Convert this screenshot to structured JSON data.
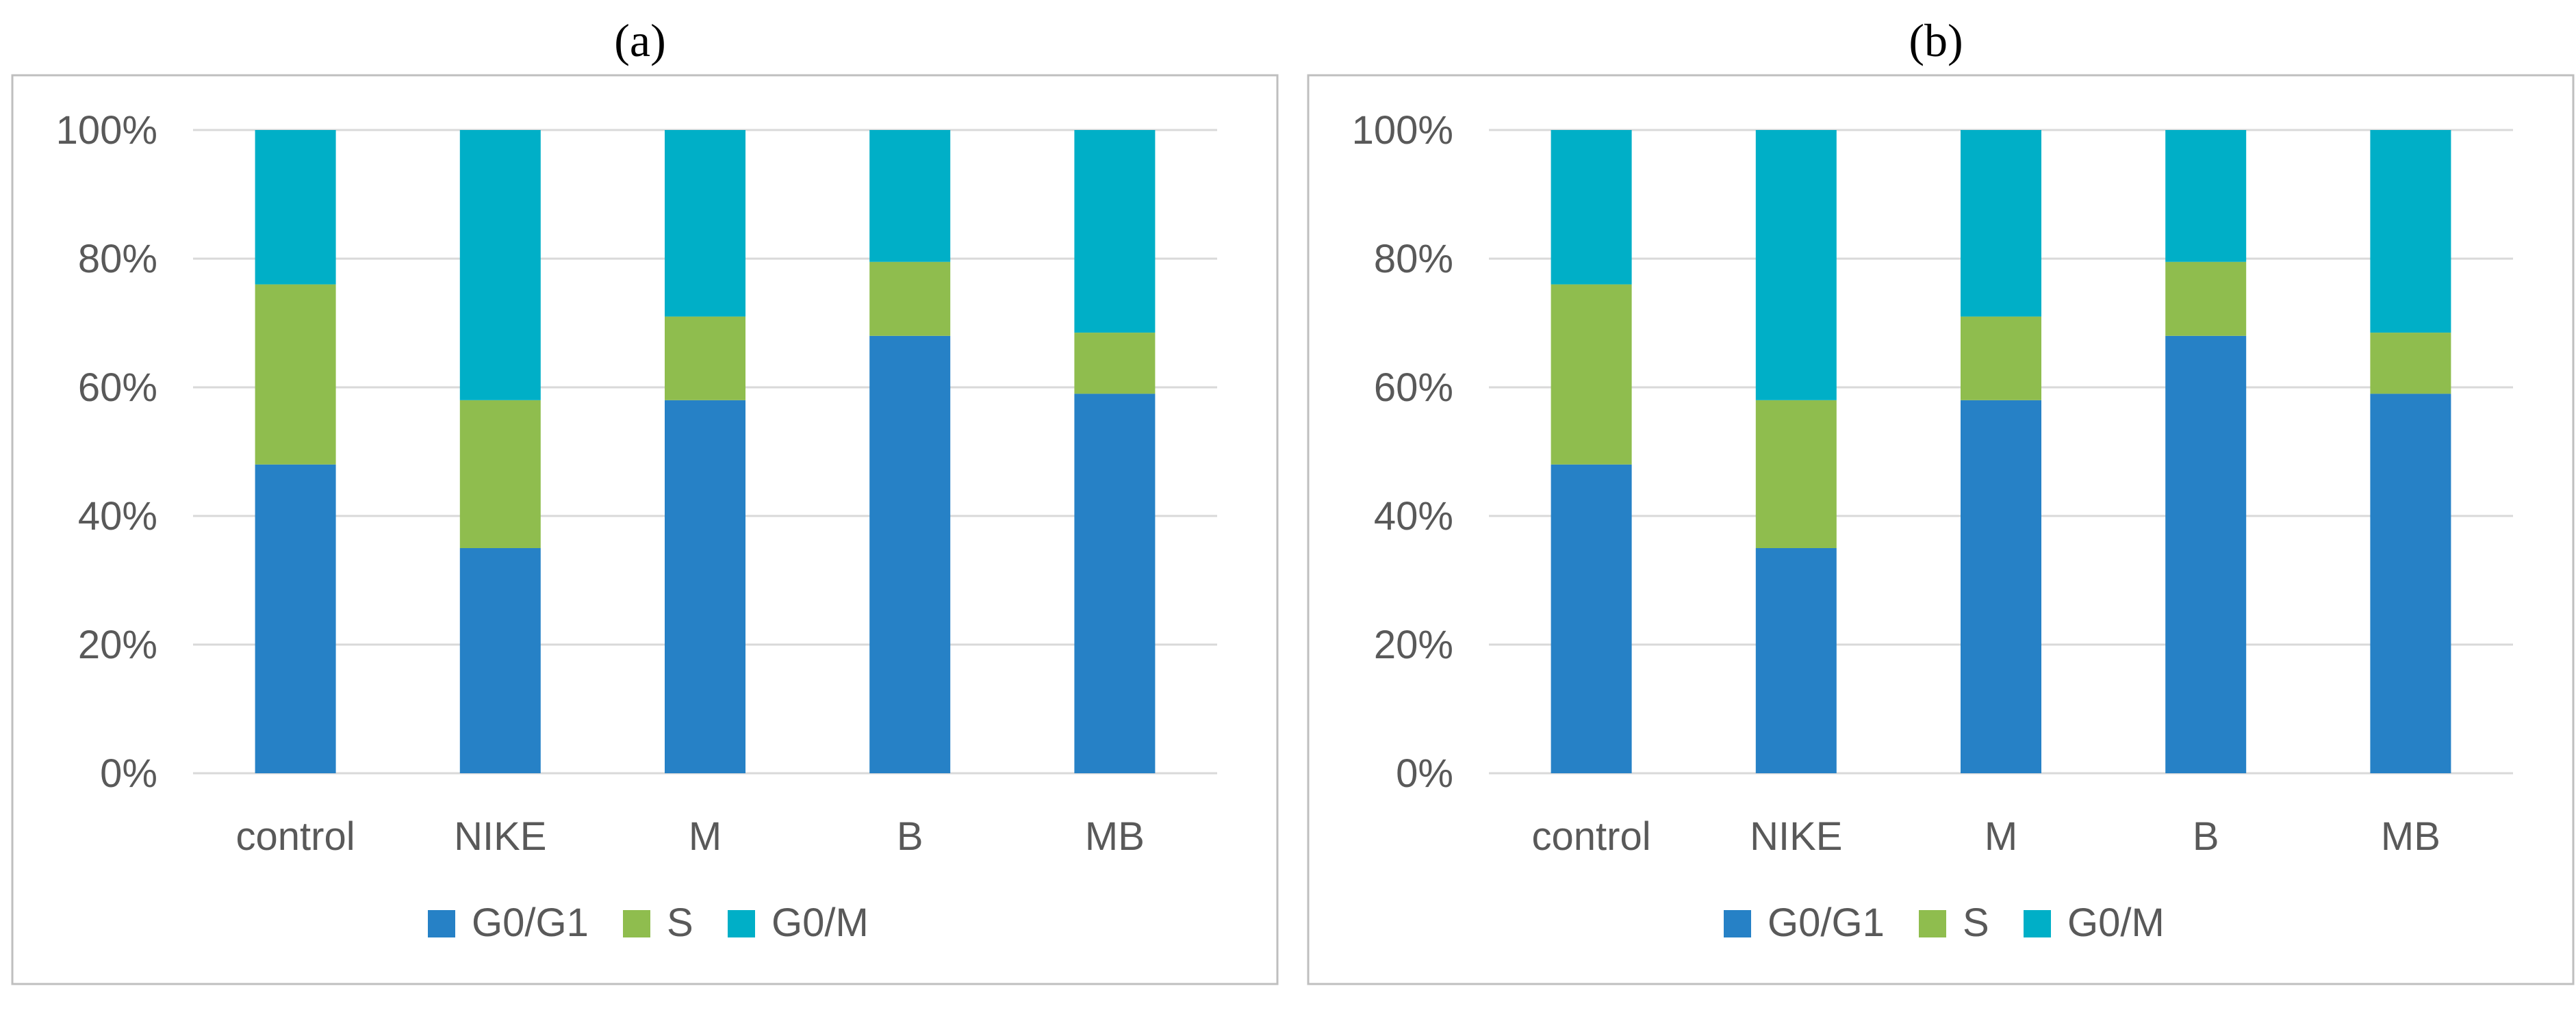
{
  "colors": {
    "G0/G1": "#2681c6",
    "S": "#8fbd4e",
    "G0/M": "#00afc7",
    "grid": "#d9d9d9",
    "frame": "#bfbfbf"
  },
  "chart_data": [
    {
      "panel_label": "(a)",
      "type": "bar",
      "stacked": true,
      "percent": true,
      "categories": [
        "control",
        "NIKE",
        "M",
        "B",
        "MB"
      ],
      "series": [
        {
          "name": "G0/G1",
          "values": [
            48,
            35,
            58,
            68,
            59
          ]
        },
        {
          "name": "S",
          "values": [
            28,
            23,
            13,
            11.5,
            9.5
          ]
        },
        {
          "name": "G0/M",
          "values": [
            24,
            42,
            29,
            20.5,
            31.5
          ]
        }
      ],
      "ylim": [
        0,
        100
      ],
      "yticks": [
        "0%",
        "20%",
        "40%",
        "60%",
        "80%",
        "100%"
      ],
      "legend": "bottom",
      "grid": true
    },
    {
      "panel_label": "(b)",
      "type": "bar",
      "stacked": true,
      "percent": true,
      "categories": [
        "control",
        "NIKE",
        "M",
        "B",
        "MB"
      ],
      "series": [
        {
          "name": "G0/G1",
          "values": [
            48,
            35,
            58,
            68,
            59
          ]
        },
        {
          "name": "S",
          "values": [
            28,
            23,
            13,
            11.5,
            9.5
          ]
        },
        {
          "name": "G0/M",
          "values": [
            24,
            42,
            29,
            20.5,
            31.5
          ]
        }
      ],
      "ylim": [
        0,
        100
      ],
      "yticks": [
        "0%",
        "20%",
        "40%",
        "60%",
        "80%",
        "100%"
      ],
      "legend": "bottom",
      "grid": true
    }
  ]
}
